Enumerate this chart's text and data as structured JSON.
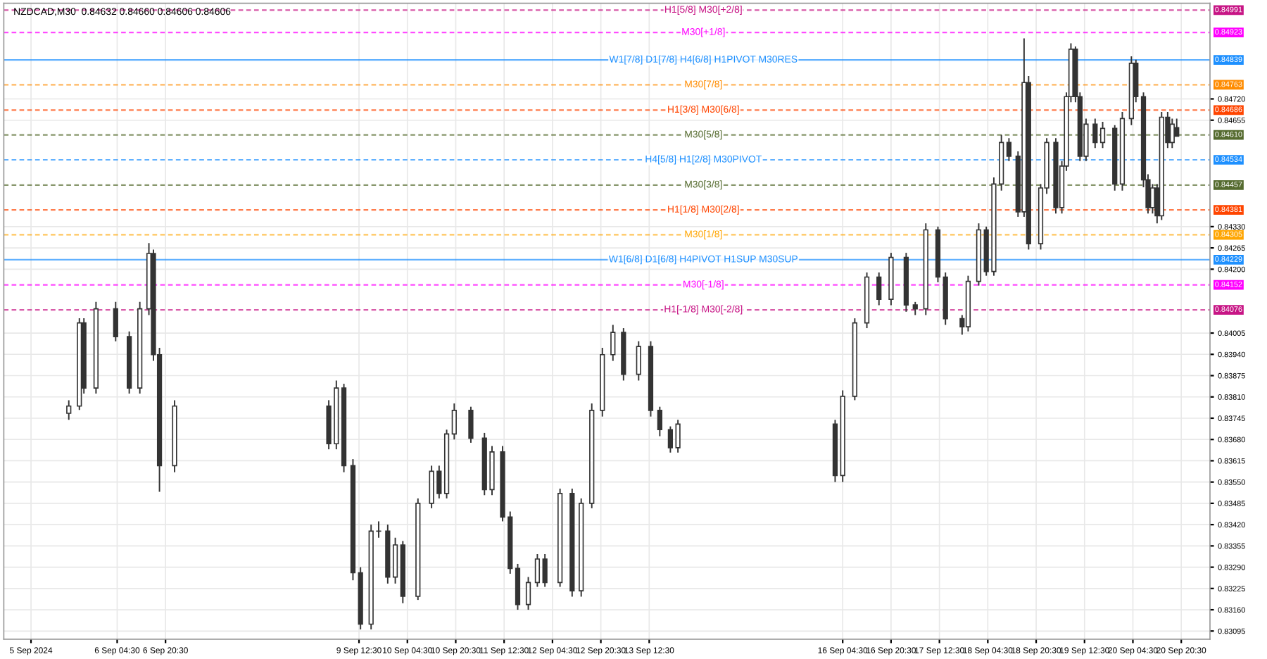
{
  "chart_data": {
    "type": "candlestick",
    "title": "NZDCAD,M30  0.84632 0.84660 0.84606 0.84606",
    "x": [
      "2024-09-05T12:30",
      "2024-09-05T16:00",
      "2024-09-05T17:30",
      "2024-09-05T21:30",
      "2024-09-06T04:00",
      "2024-09-06T08:30",
      "2024-09-06T12:00",
      "2024-09-06T15:00",
      "2024-09-06T16:30",
      "2024-09-06T18:30",
      "2024-09-06T23:30",
      "2024-09-09T02:30",
      "2024-09-09T05:00",
      "2024-09-09T07:30",
      "2024-09-09T10:30",
      "2024-09-09T13:00",
      "2024-09-09T16:30",
      "2024-09-09T19:00",
      "2024-09-09T22:00",
      "2024-09-10T00:30",
      "2024-09-10T03:00",
      "2024-09-10T08:00",
      "2024-09-10T12:30",
      "2024-09-10T15:00",
      "2024-09-10T17:30",
      "2024-09-10T20:00",
      "2024-09-11T01:30",
      "2024-09-11T06:00",
      "2024-09-11T08:30",
      "2024-09-11T12:00",
      "2024-09-11T14:30",
      "2024-09-11T17:00",
      "2024-09-11T20:30",
      "2024-09-11T23:30",
      "2024-09-12T02:00",
      "2024-09-12T07:00",
      "2024-09-12T11:00",
      "2024-09-12T14:00",
      "2024-09-12T17:30",
      "2024-09-12T21:00",
      "2024-09-13T00:30",
      "2024-09-13T04:00",
      "2024-09-13T09:00",
      "2024-09-13T13:00",
      "2024-09-13T16:00",
      "2024-09-13T19:30",
      "2024-09-13T22:00",
      "2024-09-16T02:00",
      "2024-09-16T04:30",
      "2024-09-16T08:30",
      "2024-09-16T12:30",
      "2024-09-16T16:30",
      "2024-09-16T20:30",
      "2024-09-17T01:30",
      "2024-09-17T04:30",
      "2024-09-17T08:00",
      "2024-09-17T12:00",
      "2024-09-17T14:30",
      "2024-09-17T20:00",
      "2024-09-17T22:00",
      "2024-09-18T01:30",
      "2024-09-18T04:00",
      "2024-09-18T06:30",
      "2024-09-18T09:00",
      "2024-09-18T11:30",
      "2024-09-18T14:30",
      "2024-09-18T16:30",
      "2024-09-18T18:00",
      "2024-09-18T22:00",
      "2024-09-19T00:00",
      "2024-09-19T03:00",
      "2024-09-19T05:00",
      "2024-09-19T06:30",
      "2024-09-19T08:00",
      "2024-09-19T09:30",
      "2024-09-19T11:00",
      "2024-09-19T13:00",
      "2024-09-19T16:00",
      "2024-09-19T18:30",
      "2024-09-19T22:30",
      "2024-09-20T01:00",
      "2024-09-20T04:00",
      "2024-09-20T05:30",
      "2024-09-20T08:00",
      "2024-09-20T09:30",
      "2024-09-20T11:00",
      "2024-09-20T12:30",
      "2024-09-20T14:00",
      "2024-09-20T16:00",
      "2024-09-20T17:30",
      "2024-09-20T19:00"
    ],
    "series": [
      {
        "color": "#333333",
        "ohlc": [
          [
            0.8376,
            0.838,
            0.8374,
            0.83782
          ],
          [
            0.83782,
            0.8405,
            0.8377,
            0.84036
          ],
          [
            0.84036,
            0.8405,
            0.8382,
            0.83837
          ],
          [
            0.83837,
            0.841,
            0.8382,
            0.84079
          ],
          [
            0.84079,
            0.841,
            0.8398,
            0.83994
          ],
          [
            0.83994,
            0.8401,
            0.8382,
            0.83837
          ],
          [
            0.83837,
            0.841,
            0.8382,
            0.84079
          ],
          [
            0.84079,
            0.8428,
            0.8406,
            0.84248
          ],
          [
            0.84248,
            0.8426,
            0.8392,
            0.83939
          ],
          [
            0.83939,
            0.8396,
            0.8352,
            0.836
          ],
          [
            0.836,
            0.838,
            0.8358,
            0.83782
          ],
          [
            0.83782,
            0.838,
            0.8365,
            0.83667
          ],
          [
            0.83667,
            0.8386,
            0.8365,
            0.83837
          ],
          [
            0.83837,
            0.8385,
            0.8358,
            0.836
          ],
          [
            0.836,
            0.8362,
            0.8325,
            0.83273
          ],
          [
            0.83273,
            0.8329,
            0.831,
            0.83116
          ],
          [
            0.83116,
            0.8342,
            0.831,
            0.834
          ],
          [
            0.834,
            0.8343,
            0.8338,
            0.834
          ],
          [
            0.834,
            0.8342,
            0.8324,
            0.8326
          ],
          [
            0.8326,
            0.8338,
            0.8324,
            0.83358
          ],
          [
            0.83358,
            0.8337,
            0.8318,
            0.83201
          ],
          [
            0.83201,
            0.835,
            0.8319,
            0.83485
          ],
          [
            0.83485,
            0.836,
            0.8347,
            0.83583
          ],
          [
            0.83583,
            0.836,
            0.835,
            0.83515
          ],
          [
            0.83515,
            0.8371,
            0.835,
            0.83697
          ],
          [
            0.83697,
            0.8379,
            0.8368,
            0.83769
          ],
          [
            0.83769,
            0.8378,
            0.8367,
            0.83684
          ],
          [
            0.83684,
            0.837,
            0.8351,
            0.83527
          ],
          [
            0.83527,
            0.8366,
            0.8351,
            0.83642
          ],
          [
            0.83642,
            0.8366,
            0.8343,
            0.83443
          ],
          [
            0.83443,
            0.8346,
            0.8327,
            0.83286
          ],
          [
            0.83286,
            0.833,
            0.8316,
            0.83176
          ],
          [
            0.83176,
            0.8326,
            0.8316,
            0.83243
          ],
          [
            0.83243,
            0.8333,
            0.8323,
            0.83315
          ],
          [
            0.83315,
            0.8333,
            0.8323,
            0.83243
          ],
          [
            0.83243,
            0.8353,
            0.8323,
            0.83515
          ],
          [
            0.83515,
            0.8353,
            0.832,
            0.83218
          ],
          [
            0.83218,
            0.835,
            0.832,
            0.83485
          ],
          [
            0.83485,
            0.8379,
            0.8347,
            0.83769
          ],
          [
            0.83769,
            0.8396,
            0.8375,
            0.83939
          ],
          [
            0.83939,
            0.8403,
            0.8392,
            0.84007
          ],
          [
            0.84007,
            0.8402,
            0.8386,
            0.83879
          ],
          [
            0.83879,
            0.8398,
            0.8386,
            0.83964
          ],
          [
            0.83964,
            0.8398,
            0.8375,
            0.83769
          ],
          [
            0.83769,
            0.8378,
            0.8369,
            0.8371
          ],
          [
            0.8371,
            0.8372,
            0.8364,
            0.83655
          ],
          [
            0.83655,
            0.8374,
            0.8364,
            0.83727
          ],
          [
            0.83727,
            0.8374,
            0.8355,
            0.8357
          ],
          [
            0.8357,
            0.8383,
            0.8355,
            0.83812
          ],
          [
            0.83812,
            0.8405,
            0.838,
            0.84036
          ],
          [
            0.84036,
            0.8419,
            0.8402,
            0.84176
          ],
          [
            0.84176,
            0.8419,
            0.8409,
            0.84108
          ],
          [
            0.84108,
            0.8425,
            0.8409,
            0.84236
          ],
          [
            0.84236,
            0.8425,
            0.8407,
            0.84091
          ],
          [
            0.84091,
            0.841,
            0.8406,
            0.84079
          ],
          [
            0.84079,
            0.8434,
            0.8406,
            0.8432
          ],
          [
            0.8432,
            0.8433,
            0.8416,
            0.84176
          ],
          [
            0.84176,
            0.8419,
            0.8403,
            0.84049
          ],
          [
            0.84049,
            0.8406,
            0.84,
            0.84024
          ],
          [
            0.84024,
            0.8418,
            0.8401,
            0.84163
          ],
          [
            0.84163,
            0.8434,
            0.8415,
            0.8432
          ],
          [
            0.8432,
            0.8433,
            0.8418,
            0.84193
          ],
          [
            0.84193,
            0.8448,
            0.8418,
            0.8446
          ],
          [
            0.8446,
            0.8461,
            0.8444,
            0.84587
          ],
          [
            0.84587,
            0.846,
            0.8453,
            0.84545
          ],
          [
            0.84545,
            0.8456,
            0.8436,
            0.84375
          ],
          [
            0.84375,
            0.84905,
            0.8436,
            0.8477
          ],
          [
            0.8477,
            0.8479,
            0.8426,
            0.84278
          ],
          [
            0.84278,
            0.8446,
            0.8426,
            0.84448
          ],
          [
            0.84448,
            0.846,
            0.8443,
            0.84587
          ],
          [
            0.84587,
            0.846,
            0.8437,
            0.84388
          ],
          [
            0.84388,
            0.8453,
            0.8437,
            0.84515
          ],
          [
            0.84515,
            0.8474,
            0.845,
            0.84727
          ],
          [
            0.84727,
            0.8489,
            0.8471,
            0.84872
          ],
          [
            0.84872,
            0.8488,
            0.8471,
            0.84727
          ],
          [
            0.84727,
            0.8474,
            0.8453,
            0.84545
          ],
          [
            0.84545,
            0.8466,
            0.8453,
            0.84643
          ],
          [
            0.84643,
            0.8466,
            0.8457,
            0.84587
          ],
          [
            0.84587,
            0.8465,
            0.8457,
            0.8463
          ],
          [
            0.8463,
            0.8464,
            0.8444,
            0.8446
          ],
          [
            0.8446,
            0.8468,
            0.8444,
            0.8466
          ],
          [
            0.8466,
            0.8485,
            0.8464,
            0.84829
          ],
          [
            0.84829,
            0.8484,
            0.8471,
            0.84727
          ],
          [
            0.84727,
            0.8474,
            0.8445,
            0.84473
          ],
          [
            0.84473,
            0.8449,
            0.8437,
            0.84388
          ],
          [
            0.84388,
            0.8446,
            0.8437,
            0.84448
          ],
          [
            0.84448,
            0.8446,
            0.8434,
            0.84363
          ],
          [
            0.84363,
            0.8468,
            0.8435,
            0.84664
          ],
          [
            0.84664,
            0.8468,
            0.8457,
            0.84587
          ],
          [
            0.84587,
            0.8466,
            0.8457,
            0.84643
          ],
          [
            0.84632,
            0.8466,
            0.84606,
            0.84606
          ]
        ]
      }
    ],
    "xlim": [
      "2024-09-04T15:00",
      "2024-09-21T06:00"
    ],
    "xticks": [
      {
        "value": "2024-09-05",
        "label": "5 Sep 2024"
      },
      {
        "value": "2024-09-06T04:30",
        "label": "6 Sep 04:30"
      },
      {
        "value": "2024-09-06T20:30",
        "label": "6 Sep 20:30"
      },
      {
        "value": "2024-09-09T12:30",
        "label": "9 Sep 12:30"
      },
      {
        "value": "2024-09-10T04:30",
        "label": "10 Sep 04:30"
      },
      {
        "value": "2024-09-10T20:30",
        "label": "10 Sep 20:30"
      },
      {
        "value": "2024-09-11T12:30",
        "label": "11 Sep 12:30"
      },
      {
        "value": "2024-09-12T04:30",
        "label": "12 Sep 04:30"
      },
      {
        "value": "2024-09-12T20:30",
        "label": "12 Sep 20:30"
      },
      {
        "value": "2024-09-13T12:30",
        "label": "13 Sep 12:30"
      },
      {
        "value": "2024-09-16T04:30",
        "label": "16 Sep 04:30"
      },
      {
        "value": "2024-09-16T20:30",
        "label": "16 Sep 20:30"
      },
      {
        "value": "2024-09-17T12:30",
        "label": "17 Sep 12:30"
      },
      {
        "value": "2024-09-18T04:30",
        "label": "18 Sep 04:30"
      },
      {
        "value": "2024-09-18T20:30",
        "label": "18 Sep 20:30"
      },
      {
        "value": "2024-09-19T12:30",
        "label": "19 Sep 12:30"
      },
      {
        "value": "2024-09-20T04:30",
        "label": "20 Sep 04:30"
      },
      {
        "value": "2024-09-20T20:30",
        "label": "20 Sep 20:30"
      }
    ],
    "ylim": [
      0.8307,
      0.85012
    ],
    "yticks": [
      0.83095,
      {
        "value": 0.8316,
        "label": "0.83160"
      },
      0.83225,
      {
        "value": 0.8329,
        "label": "0.83290"
      },
      0.83355,
      {
        "value": 0.8342,
        "label": "0.83420"
      },
      0.83485,
      {
        "value": 0.8355,
        "label": "0.83550"
      },
      0.83615,
      {
        "value": 0.8368,
        "label": "0.83680"
      },
      0.83745,
      {
        "value": 0.8381,
        "label": "0.83810"
      },
      0.83875,
      {
        "value": 0.8394,
        "label": "0.83940"
      },
      0.84005,
      {
        "value": 0.842,
        "label": "0.84200"
      },
      0.84265,
      {
        "value": 0.8433,
        "label": "0.84330"
      },
      0.84655,
      {
        "value": 0.8472,
        "label": "0.84720"
      }
    ],
    "annotations": [
      "0.84991",
      "0.84923",
      "0.84839",
      "0.84763",
      "0.84686",
      "0.84610",
      "0.84534",
      "0.84457",
      "0.84381",
      "0.84305",
      "0.84229",
      "0.84152",
      "0.84076"
    ],
    "grid": true,
    "ref_lines": [
      {
        "axis": "y",
        "value": 0.84991,
        "label": "H1[5/8] M30[+2/8]",
        "color": "#c71585",
        "line_style": "dashed"
      },
      {
        "axis": "y",
        "value": 0.84923,
        "label": "M30[+1/8]",
        "color": "#ff00ff",
        "line_style": "dashed"
      },
      {
        "axis": "y",
        "value": 0.84839,
        "label": "W1[7/8] D1[7/8] H4[6/8] H1PIVOT M30RES",
        "color": "#1e90ff",
        "line_style": "solid"
      },
      {
        "axis": "y",
        "value": 0.84763,
        "label": "M30[7/8]",
        "color": "#ff8c00",
        "line_style": "dashed"
      },
      {
        "axis": "y",
        "value": 0.84686,
        "label": "H1[3/8] M30[6/8]",
        "color": "#ff4500",
        "line_style": "dashed"
      },
      {
        "axis": "y",
        "value": 0.8461,
        "label": "M30[5/8]",
        "color": "#556b2f",
        "line_style": "dashed"
      },
      {
        "axis": "y",
        "value": 0.84534,
        "label": "H4[5/8] H1[2/8] M30PIVOT",
        "color": "#1e90ff",
        "line_style": "dashed"
      },
      {
        "axis": "y",
        "value": 0.84457,
        "label": "M30[3/8]",
        "color": "#556b2f",
        "line_style": "dashed"
      },
      {
        "axis": "y",
        "value": 0.84381,
        "label": "H1[1/8] M30[2/8]",
        "color": "#ff4500",
        "line_style": "dashed"
      },
      {
        "axis": "y",
        "value": 0.84305,
        "label": "M30[1/8]",
        "color": "#ffa500",
        "line_style": "dashed"
      },
      {
        "axis": "y",
        "value": 0.84229,
        "label": "W1[6/8] D1[6/8] H4PIVOT H1SUP M30SUP",
        "color": "#1e90ff",
        "line_style": "solid"
      },
      {
        "axis": "y",
        "value": 0.84152,
        "label": "M30[-1/8]",
        "color": "#ff00ff",
        "line_style": "dashed"
      },
      {
        "axis": "y",
        "value": 0.84076,
        "label": "H1[-1/8] M30[-2/8]",
        "color": "#c71585",
        "line_style": "dashed"
      }
    ]
  }
}
